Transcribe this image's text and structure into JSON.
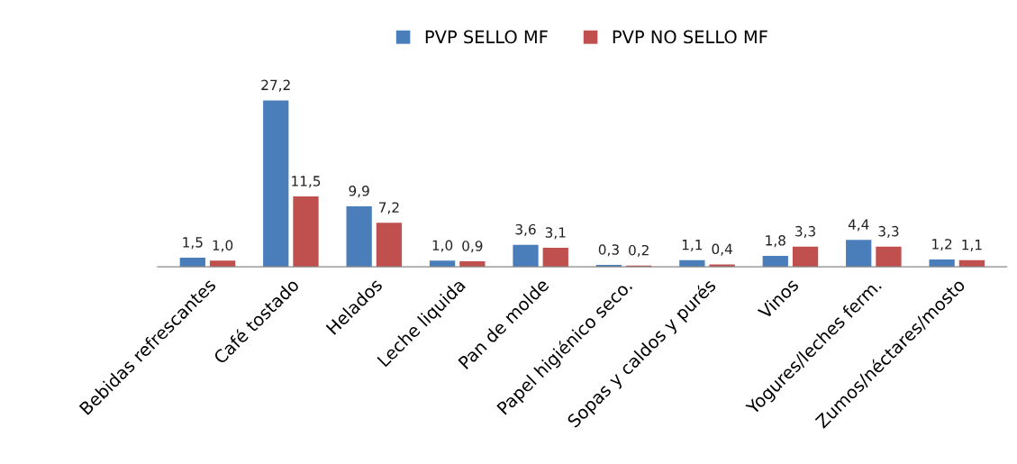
{
  "chart_data": {
    "type": "bar",
    "categories": [
      "Bebidas refrescantes",
      "Café tostado",
      "Helados",
      "Leche liquida",
      "Pan de molde",
      "Papel higiénico seco.",
      "Sopas y caldos y purés",
      "Vinos",
      "Yogures/leches ferm.",
      "Zumos/néctares/mosto"
    ],
    "series": [
      {
        "name": "PVP SELLO MF",
        "color": "#4a7ebb",
        "values": [
          1.5,
          27.2,
          9.9,
          1.0,
          3.6,
          0.3,
          1.1,
          1.8,
          4.4,
          1.2
        ],
        "value_labels": [
          "1,5",
          "27,2",
          "9,9",
          "1,0",
          "3,6",
          "0,3",
          "1,1",
          "1,8",
          "4,4",
          "1,2"
        ]
      },
      {
        "name": "PVP NO SELLO MF",
        "color": "#c0504d",
        "values": [
          1.0,
          11.5,
          7.2,
          0.9,
          3.1,
          0.2,
          0.4,
          3.3,
          3.3,
          1.1
        ],
        "value_labels": [
          "1,0",
          "11,5",
          "7,2",
          "0,9",
          "3,1",
          "0,2",
          "0,4",
          "3,3",
          "3,3",
          "1,1"
        ]
      }
    ],
    "legend": "top",
    "grid": false
  }
}
